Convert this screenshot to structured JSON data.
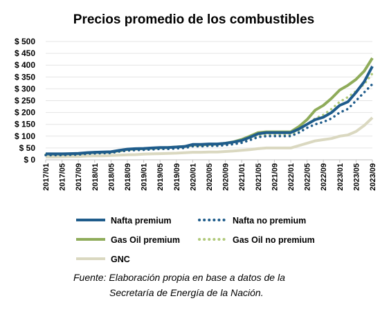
{
  "chart_data": {
    "type": "line",
    "title": "Precios promedio de los combustibles",
    "xlabel": "",
    "ylabel": "",
    "ylim": [
      0,
      500
    ],
    "y_tick_labels": [
      "$ 500",
      "$ 450",
      "$ 400",
      "$ 350",
      "$ 300",
      "$ 250",
      "$ 200",
      "$ 150",
      "$ 100",
      "$ 50",
      "$ 0"
    ],
    "x_tick_labels": [
      "2017/01",
      "2017/05",
      "2017/09",
      "2018/01",
      "2018/05",
      "2018/09",
      "2019/01",
      "2019/05",
      "2019/09",
      "2020/01",
      "2020/05",
      "2020/09",
      "2021/01",
      "2021/05",
      "2021/09",
      "2022/01",
      "2022/05",
      "2022/09",
      "2023/01",
      "2023/05",
      "2023/09"
    ],
    "x": [
      "2017/01",
      "2017/03",
      "2017/05",
      "2017/07",
      "2017/09",
      "2017/11",
      "2018/01",
      "2018/03",
      "2018/05",
      "2018/07",
      "2018/09",
      "2018/11",
      "2019/01",
      "2019/03",
      "2019/05",
      "2019/07",
      "2019/09",
      "2019/11",
      "2020/01",
      "2020/03",
      "2020/05",
      "2020/07",
      "2020/09",
      "2020/11",
      "2021/01",
      "2021/03",
      "2021/05",
      "2021/07",
      "2021/09",
      "2021/11",
      "2022/01",
      "2022/03",
      "2022/05",
      "2022/07",
      "2022/09",
      "2022/11",
      "2023/01",
      "2023/03",
      "2023/05",
      "2023/07",
      "2023/09"
    ],
    "series": [
      {
        "name": "Nafta premium",
        "color": "#1f5c8b",
        "style": "solid",
        "values": [
          25,
          25,
          25,
          26,
          27,
          30,
          32,
          33,
          34,
          40,
          45,
          47,
          48,
          50,
          52,
          52,
          54,
          56,
          65,
          65,
          67,
          67,
          70,
          75,
          82,
          95,
          110,
          115,
          115,
          115,
          115,
          130,
          150,
          170,
          180,
          200,
          230,
          245,
          285,
          330,
          395
        ]
      },
      {
        "name": "Nafta no premium",
        "color": "#1f5c8b",
        "style": "dotted",
        "values": [
          20,
          20,
          20,
          21,
          22,
          25,
          27,
          28,
          29,
          35,
          39,
          41,
          42,
          44,
          46,
          46,
          48,
          50,
          57,
          57,
          59,
          59,
          62,
          66,
          72,
          83,
          96,
          100,
          100,
          100,
          100,
          115,
          135,
          150,
          160,
          175,
          200,
          215,
          250,
          285,
          320
        ]
      },
      {
        "name": "Gas Oil premium",
        "color": "#8fac5a",
        "style": "solid",
        "values": [
          24,
          24,
          24,
          25,
          26,
          29,
          31,
          32,
          33,
          38,
          44,
          46,
          47,
          49,
          51,
          52,
          54,
          56,
          63,
          63,
          65,
          66,
          70,
          76,
          86,
          100,
          115,
          118,
          118,
          118,
          118,
          140,
          170,
          210,
          230,
          260,
          295,
          315,
          340,
          375,
          430
        ]
      },
      {
        "name": "Gas Oil no premium",
        "color": "#b0c97a",
        "style": "dotted",
        "values": [
          22,
          22,
          22,
          23,
          24,
          26,
          28,
          29,
          30,
          35,
          40,
          42,
          43,
          45,
          47,
          48,
          50,
          52,
          58,
          58,
          60,
          61,
          65,
          70,
          78,
          90,
          103,
          106,
          106,
          106,
          106,
          125,
          150,
          175,
          190,
          215,
          245,
          265,
          290,
          320,
          365
        ]
      },
      {
        "name": "GNC",
        "color": "#dad8c0",
        "style": "solid",
        "values": [
          12,
          12,
          13,
          14,
          14,
          16,
          17,
          17,
          18,
          20,
          21,
          22,
          24,
          25,
          26,
          27,
          28,
          30,
          32,
          32,
          33,
          33,
          35,
          37,
          40,
          43,
          47,
          50,
          50,
          50,
          50,
          60,
          70,
          80,
          85,
          90,
          100,
          105,
          120,
          145,
          178
        ]
      }
    ],
    "legend_position": "bottom",
    "source_lines": [
      "Fuente: Elaboración propia en base a datos de la",
      "Secretaría de Energía de la Nación."
    ]
  }
}
